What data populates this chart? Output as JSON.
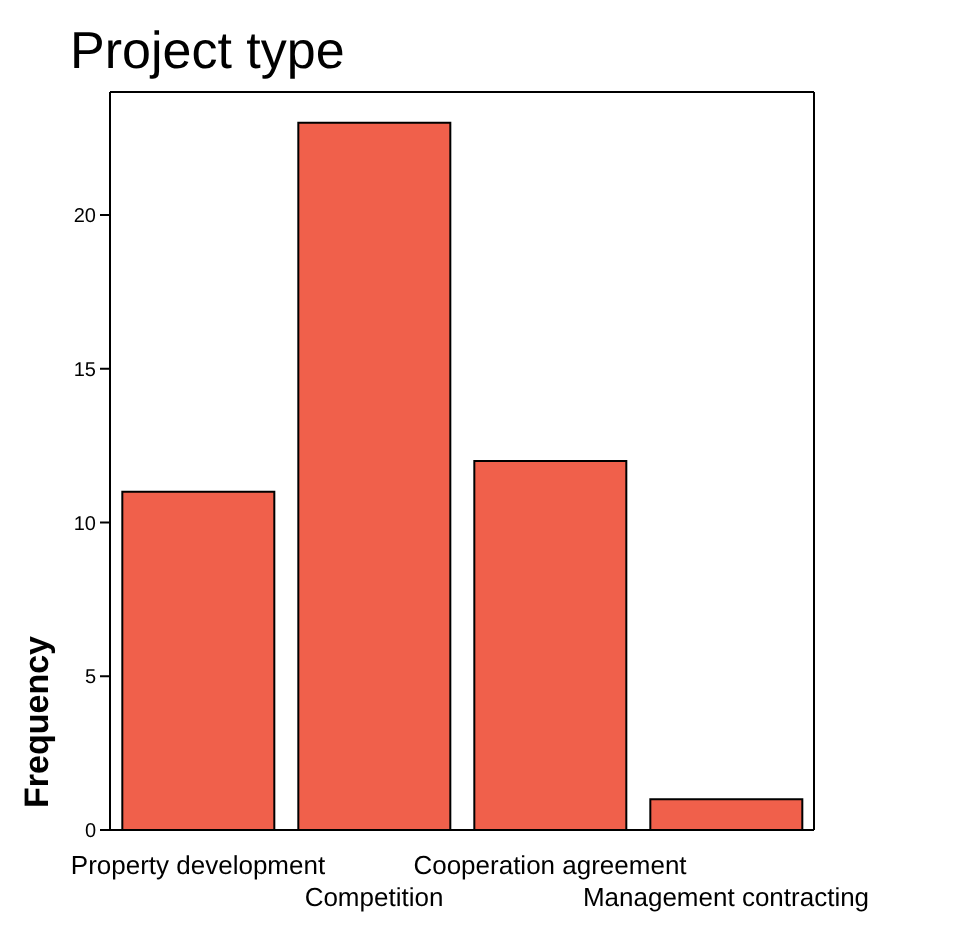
{
  "chart_data": {
    "type": "bar",
    "title": "Project type",
    "ylabel": "Frequency",
    "categories": [
      "Property development",
      "Competition",
      "Cooperation agreement",
      "Management contracting"
    ],
    "values": [
      11,
      23,
      12,
      1
    ],
    "color": "#f0604b",
    "ylim": [
      0,
      24
    ],
    "yticks": [
      0,
      5,
      10,
      15,
      20
    ],
    "grid": false,
    "legend": false
  }
}
